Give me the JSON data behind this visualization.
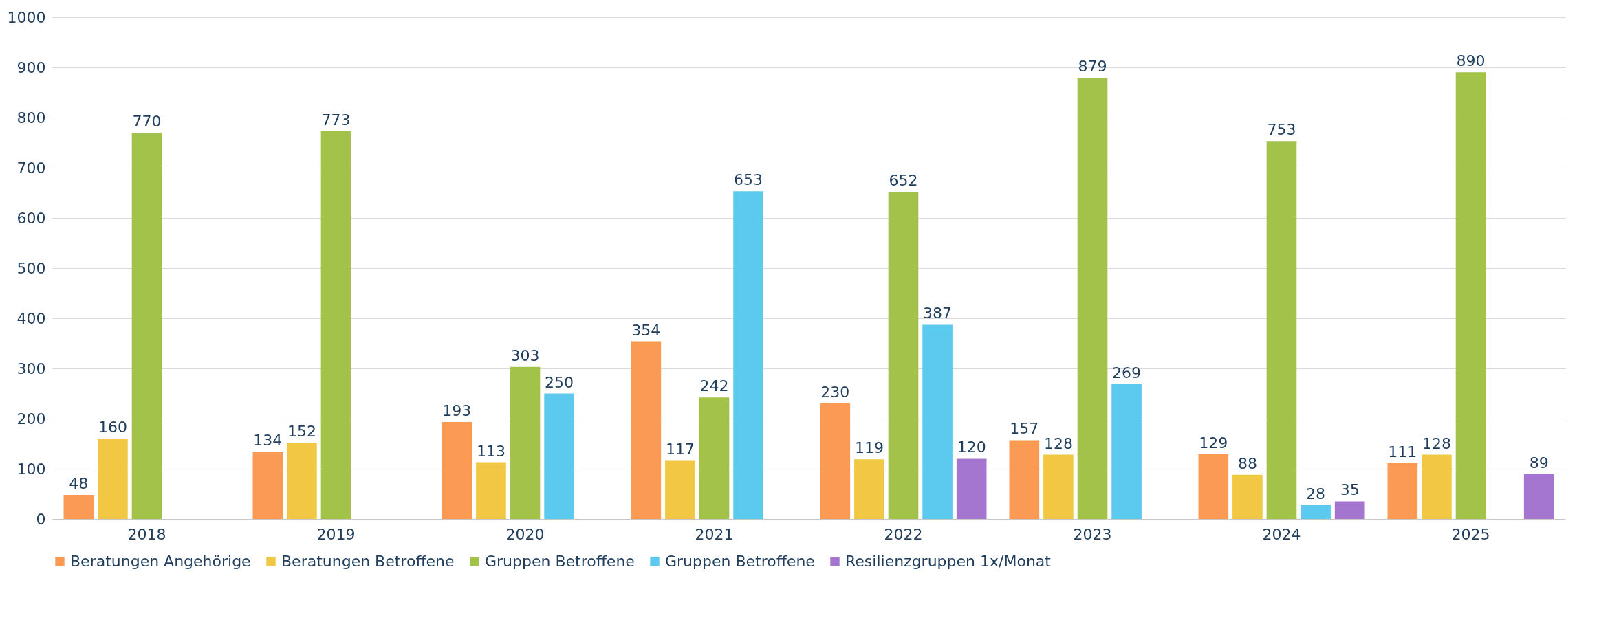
{
  "chart_data": {
    "type": "bar",
    "categories": [
      "2018",
      "2019",
      "2020",
      "2021",
      "2022",
      "2023",
      "2024",
      "2025"
    ],
    "series": [
      {
        "name": "Beratungen Angehörige",
        "color": "#fb9a55",
        "values": [
          48,
          134,
          193,
          354,
          230,
          157,
          129,
          111
        ]
      },
      {
        "name": "Beratungen Betroffene",
        "color": "#f2c744",
        "values": [
          160,
          152,
          113,
          117,
          119,
          128,
          88,
          128
        ]
      },
      {
        "name": "Gruppen Betroffene",
        "color": "#a3c24a",
        "values": [
          770,
          773,
          303,
          242,
          652,
          879,
          753,
          890
        ]
      },
      {
        "name": "Gruppen Betroffene",
        "color": "#5ccaee",
        "values": [
          null,
          null,
          250,
          653,
          387,
          269,
          28,
          null
        ]
      },
      {
        "name": "Resilienzgruppen 1x/Monat",
        "color": "#a576cf",
        "values": [
          null,
          null,
          null,
          null,
          120,
          null,
          35,
          89
        ]
      }
    ],
    "ylim": [
      0,
      1000
    ],
    "yticks": [
      0,
      100,
      200,
      300,
      400,
      500,
      600,
      700,
      800,
      900,
      1000
    ],
    "grid": "y",
    "legend": "bottom",
    "data_labels": true
  }
}
